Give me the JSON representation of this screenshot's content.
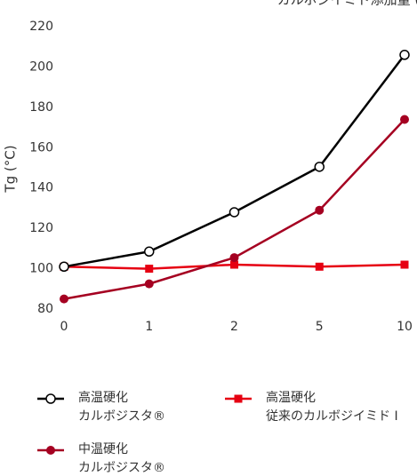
{
  "chart_data": {
    "type": "line",
    "xlabel": "カルボジイミド添加量 (%)",
    "ylabel": "Tg (°C)",
    "categories": [
      "0",
      "1",
      "2",
      "5",
      "10"
    ],
    "series": [
      {
        "name": "高温硬化\nカルボジスタ®",
        "color": "#000000",
        "marker": "circle-open",
        "values": [
          101,
          108.5,
          128,
          150.5,
          206
        ]
      },
      {
        "name": "高温硬化\n従来のカルボジイミド I",
        "color": "#e60012",
        "marker": "square",
        "values": [
          101,
          100,
          102,
          101,
          102
        ]
      },
      {
        "name": "中温硬化\nカルボジスタ®",
        "color": "#a50021",
        "marker": "circle",
        "values": [
          85,
          92.5,
          105.5,
          129,
          174
        ]
      }
    ],
    "ylim": [
      80,
      220
    ],
    "yticks": [
      80,
      100,
      120,
      140,
      160,
      180,
      200,
      220
    ],
    "grid": false
  }
}
